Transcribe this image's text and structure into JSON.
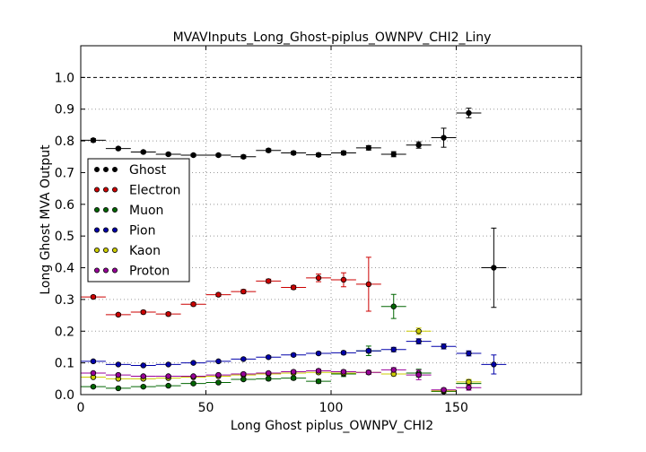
{
  "chart_data": {
    "type": "scatter",
    "title": "MVAVInputs_Long_Ghost-piplus_OWNPV_CHI2_Liny",
    "xlabel": "Long Ghost piplus_OWNPV_CHI2",
    "ylabel": "Long Ghost MVA Output",
    "xlim": [
      0,
      200
    ],
    "ylim": [
      0,
      1.1
    ],
    "xticks": [
      0,
      50,
      100,
      150
    ],
    "yticks": [
      0.0,
      0.1,
      0.2,
      0.3,
      0.4,
      0.5,
      0.6,
      0.7,
      0.8,
      0.9,
      1.0
    ],
    "grid": true,
    "reference_line": 1.0,
    "legend_position": "center-left",
    "x_bin_halfwidth": 5,
    "series": [
      {
        "name": "Ghost",
        "color": "#000000",
        "x": [
          5,
          15,
          25,
          35,
          45,
          55,
          65,
          75,
          85,
          95,
          105,
          115,
          125,
          135,
          145,
          155,
          165
        ],
        "y": [
          0.802,
          0.776,
          0.765,
          0.758,
          0.755,
          0.755,
          0.75,
          0.77,
          0.762,
          0.756,
          0.762,
          0.778,
          0.758,
          0.787,
          0.81,
          0.888,
          0.4
        ],
        "yerr": [
          0.005,
          0.004,
          0.004,
          0.004,
          0.004,
          0.004,
          0.005,
          0.005,
          0.005,
          0.005,
          0.006,
          0.007,
          0.008,
          0.01,
          0.03,
          0.015,
          0.125
        ]
      },
      {
        "name": "Electron",
        "color": "#cc0000",
        "x": [
          5,
          15,
          25,
          35,
          45,
          55,
          65,
          75,
          85,
          95,
          105,
          115
        ],
        "y": [
          0.308,
          0.252,
          0.26,
          0.254,
          0.285,
          0.315,
          0.325,
          0.358,
          0.338,
          0.368,
          0.362,
          0.348
        ],
        "yerr": [
          0.004,
          0.004,
          0.005,
          0.005,
          0.005,
          0.005,
          0.006,
          0.006,
          0.006,
          0.012,
          0.022,
          0.085
        ]
      },
      {
        "name": "Muon",
        "color": "#006600",
        "x": [
          5,
          15,
          25,
          35,
          45,
          55,
          65,
          75,
          85,
          95,
          105,
          115,
          125,
          135,
          145,
          155
        ],
        "y": [
          0.025,
          0.02,
          0.025,
          0.028,
          0.035,
          0.038,
          0.048,
          0.05,
          0.052,
          0.042,
          0.065,
          0.138,
          0.278,
          0.068,
          0.01,
          0.035
        ],
        "yerr": [
          0.003,
          0.003,
          0.003,
          0.003,
          0.004,
          0.004,
          0.004,
          0.005,
          0.005,
          0.006,
          0.008,
          0.015,
          0.038,
          0.012,
          0.005,
          0.01
        ]
      },
      {
        "name": "Pion",
        "color": "#0000aa",
        "x": [
          5,
          15,
          25,
          35,
          45,
          55,
          65,
          75,
          85,
          95,
          105,
          115,
          125,
          135,
          145,
          155,
          165
        ],
        "y": [
          0.105,
          0.095,
          0.092,
          0.095,
          0.1,
          0.105,
          0.112,
          0.118,
          0.125,
          0.13,
          0.132,
          0.138,
          0.142,
          0.168,
          0.152,
          0.13,
          0.095
        ],
        "yerr": [
          0.003,
          0.003,
          0.003,
          0.003,
          0.003,
          0.003,
          0.003,
          0.004,
          0.004,
          0.004,
          0.005,
          0.006,
          0.007,
          0.008,
          0.008,
          0.008,
          0.03
        ]
      },
      {
        "name": "Kaon",
        "color": "#cccc00",
        "x": [
          5,
          15,
          25,
          35,
          45,
          55,
          65,
          75,
          85,
          95,
          105,
          115,
          125,
          135,
          145,
          155
        ],
        "y": [
          0.055,
          0.05,
          0.05,
          0.052,
          0.055,
          0.058,
          0.062,
          0.065,
          0.068,
          0.07,
          0.068,
          0.07,
          0.065,
          0.2,
          0.012,
          0.04
        ],
        "yerr": [
          0.003,
          0.003,
          0.003,
          0.003,
          0.003,
          0.003,
          0.004,
          0.004,
          0.004,
          0.005,
          0.005,
          0.006,
          0.006,
          0.01,
          0.005,
          0.008
        ]
      },
      {
        "name": "Proton",
        "color": "#990099",
        "x": [
          5,
          15,
          25,
          35,
          45,
          55,
          65,
          75,
          85,
          95,
          105,
          115,
          125,
          135,
          145,
          155
        ],
        "y": [
          0.068,
          0.062,
          0.058,
          0.058,
          0.058,
          0.062,
          0.065,
          0.068,
          0.072,
          0.075,
          0.072,
          0.07,
          0.078,
          0.062,
          0.015,
          0.022
        ],
        "yerr": [
          0.003,
          0.003,
          0.003,
          0.003,
          0.003,
          0.003,
          0.004,
          0.004,
          0.004,
          0.005,
          0.005,
          0.006,
          0.007,
          0.015,
          0.005,
          0.008
        ]
      }
    ]
  }
}
